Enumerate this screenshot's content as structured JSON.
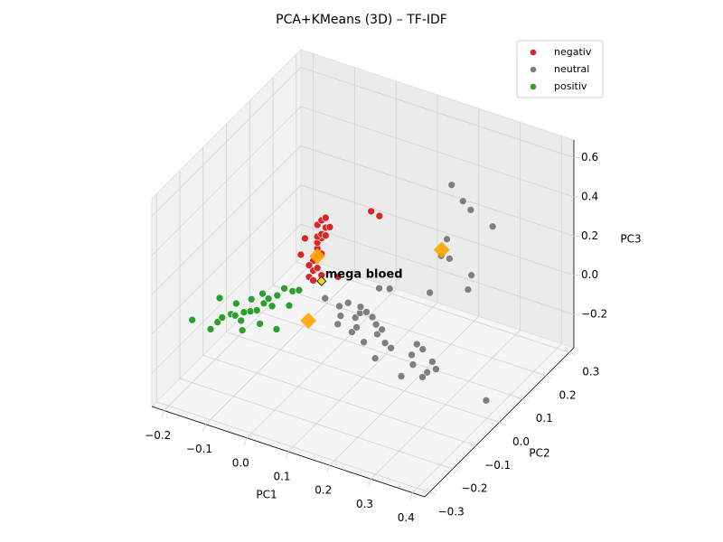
{
  "chart_data": {
    "type": "scatter3d",
    "title": "PCA+KMeans (3D) – TF-IDF",
    "xlabel": "PC1",
    "ylabel": "PC2",
    "zlabel": "PC3",
    "xlim": [
      -0.23,
      0.43
    ],
    "ylim": [
      -0.32,
      0.32
    ],
    "zlim": [
      -0.37,
      0.69
    ],
    "xticks": [
      {
        "value": -0.2,
        "label": "−0.2"
      },
      {
        "value": -0.1,
        "label": "−0.1"
      },
      {
        "value": 0.0,
        "label": "0.0"
      },
      0.1,
      0.2,
      0.3,
      0.4
    ],
    "yticks": [
      {
        "value": -0.3,
        "label": "−0.3"
      },
      {
        "value": -0.2,
        "label": "−0.2"
      },
      {
        "value": -0.1,
        "label": "−0.1"
      },
      {
        "value": 0.0,
        "label": "0.0"
      },
      0.1,
      0.2,
      0.3
    ],
    "zticks": [
      {
        "value": -0.2,
        "label": "−0.2"
      },
      {
        "value": 0.0,
        "label": "0.0"
      },
      0.2,
      0.4,
      0.6
    ],
    "grid": true,
    "legend": "upper right",
    "series": [
      {
        "name": "negativ",
        "color": "#d62728",
        "x": [
          -0.03,
          -0.02,
          -0.01,
          -0.02,
          -0.01,
          0.0,
          -0.01,
          -0.01,
          0.0,
          -0.01,
          0.0,
          0.01,
          -0.01,
          0.0,
          0.02,
          0.01,
          -0.03,
          -0.05,
          -0.02,
          0.04,
          0.12,
          0.14,
          -0.04,
          0.01,
          0.0
        ],
        "y": [
          0.0,
          0.0,
          0.0,
          0.0,
          0.0,
          0.0,
          0.0,
          0.0,
          0.0,
          0.0,
          0.0,
          0.0,
          0.0,
          0.0,
          0.0,
          0.0,
          0.0,
          0.0,
          0.0,
          0.0,
          0.0,
          0.0,
          0.0,
          0.0,
          0.0
        ],
        "z": [
          0.05,
          0.09,
          0.11,
          0.14,
          0.17,
          0.19,
          0.21,
          0.24,
          0.27,
          0.27,
          0.29,
          0.33,
          0.33,
          0.36,
          0.34,
          0.38,
          0.11,
          0.15,
          0.04,
          0.1,
          0.49,
          0.48,
          0.24,
          0.29,
          0.08
        ]
      },
      {
        "name": "neutral",
        "color": "#7f7f7f",
        "x": [
          0.02,
          0.06,
          0.07,
          0.11,
          0.11,
          0.12,
          0.14,
          0.16,
          0.08,
          0.13,
          0.17,
          0.18,
          0.21,
          0.23,
          0.22,
          0.28,
          0.27,
          0.29,
          0.3,
          0.34,
          0.33,
          0.35,
          0.34,
          0.3,
          0.09,
          0.1,
          0.13,
          0.18,
          0.1,
          0.12,
          0.2,
          0.37,
          0.14,
          0.19,
          0.22,
          0.29,
          0.23,
          0.25,
          0.27,
          0.34,
          0.36
        ],
        "y": [
          -0.02,
          -0.03,
          -0.01,
          -0.05,
          -0.03,
          -0.02,
          -0.03,
          -0.05,
          -0.06,
          -0.1,
          -0.12,
          -0.08,
          -0.1,
          -0.11,
          -0.16,
          -0.11,
          -0.07,
          -0.08,
          -0.14,
          -0.15,
          -0.11,
          -0.13,
          -0.17,
          -0.19,
          -0.09,
          -0.01,
          -0.08,
          -0.06,
          0.07,
          0.08,
          0.11,
          0.05,
          0.31,
          0.27,
          0.25,
          0.22,
          0.13,
          0.07,
          0.07,
          0.04,
          -0.01
        ],
        "z": [
          0.0,
          0.0,
          0.0,
          0.0,
          0.0,
          0.0,
          0.0,
          0.0,
          0.0,
          0.0,
          0.0,
          0.0,
          0.0,
          0.0,
          0.0,
          0.0,
          0.0,
          0.0,
          0.0,
          0.0,
          0.0,
          0.0,
          0.0,
          0.0,
          0.0,
          0.0,
          0.0,
          0.0,
          0.0,
          0.0,
          0.0,
          -0.36,
          0.27,
          0.27,
          0.27,
          0.27,
          0.27,
          0.27,
          0.27,
          0.27,
          0.27
        ]
      },
      {
        "name": "positiv",
        "color": "#2ca02c",
        "x": [
          -0.2,
          -0.15,
          -0.15,
          -0.15,
          -0.14,
          -0.13,
          -0.12,
          -0.11,
          -0.1,
          -0.1,
          -0.1,
          -0.09,
          -0.09,
          -0.07,
          -0.06,
          -0.15,
          -0.13,
          -0.07,
          -0.03,
          -0.09,
          -0.08,
          -0.19,
          -0.12,
          -0.05,
          -0.11
        ],
        "y": [
          -0.2,
          -0.21,
          -0.18,
          -0.16,
          -0.14,
          -0.14,
          -0.12,
          -0.11,
          -0.1,
          -0.07,
          -0.05,
          -0.03,
          0.0,
          0.0,
          0.01,
          -0.1,
          -0.07,
          -0.14,
          -0.14,
          -0.18,
          -0.07,
          -0.1,
          -0.04,
          -0.05,
          -0.15
        ],
        "z": [
          -0.05,
          -0.05,
          -0.05,
          -0.05,
          -0.05,
          -0.05,
          -0.05,
          -0.05,
          -0.05,
          -0.05,
          -0.05,
          -0.05,
          -0.05,
          -0.05,
          -0.05,
          -0.05,
          -0.05,
          -0.05,
          -0.05,
          -0.05,
          -0.05,
          -0.05,
          -0.05,
          -0.05,
          -0.05
        ]
      }
    ],
    "centroids": {
      "color": "#ffa500",
      "x": [
        0.03,
        0.24,
        -0.01
      ],
      "y": [
        -0.11,
        0.09,
        0.0
      ],
      "z": [
        0.0,
        0.27,
        0.17
      ]
    },
    "annotation": {
      "text": "mega bloed",
      "color": "#ffd700",
      "x": 0.0,
      "y": 0.0,
      "z": 0.05
    }
  }
}
